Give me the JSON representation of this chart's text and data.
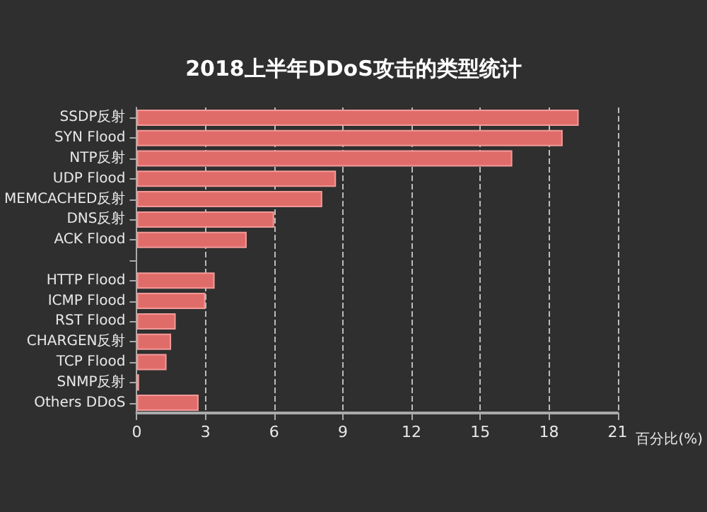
{
  "chart_data": {
    "type": "bar",
    "orientation": "horizontal",
    "title": "2018上半年DDoS攻击的类型统计",
    "xlabel": "百分比(%)",
    "categories": [
      "SSDP反射",
      "SYN Flood",
      "NTP反射",
      "UDP Flood",
      "MEMCACHED反射",
      "DNS反射",
      "ACK Flood",
      null,
      "HTTP Flood",
      "ICMP Flood",
      "RST Flood",
      "CHARGEN反射",
      "TCP Flood",
      "SNMP反射",
      "Others DDoS"
    ],
    "values": [
      19.3,
      18.6,
      16.4,
      8.7,
      8.1,
      6.0,
      4.8,
      null,
      3.4,
      3.0,
      1.7,
      1.5,
      1.3,
      0.1,
      2.7
    ],
    "color": "#e06c6a",
    "xlim": [
      0,
      21
    ],
    "xticks": [
      0,
      3,
      6,
      9,
      12,
      15,
      18,
      21
    ],
    "grid": "x"
  }
}
